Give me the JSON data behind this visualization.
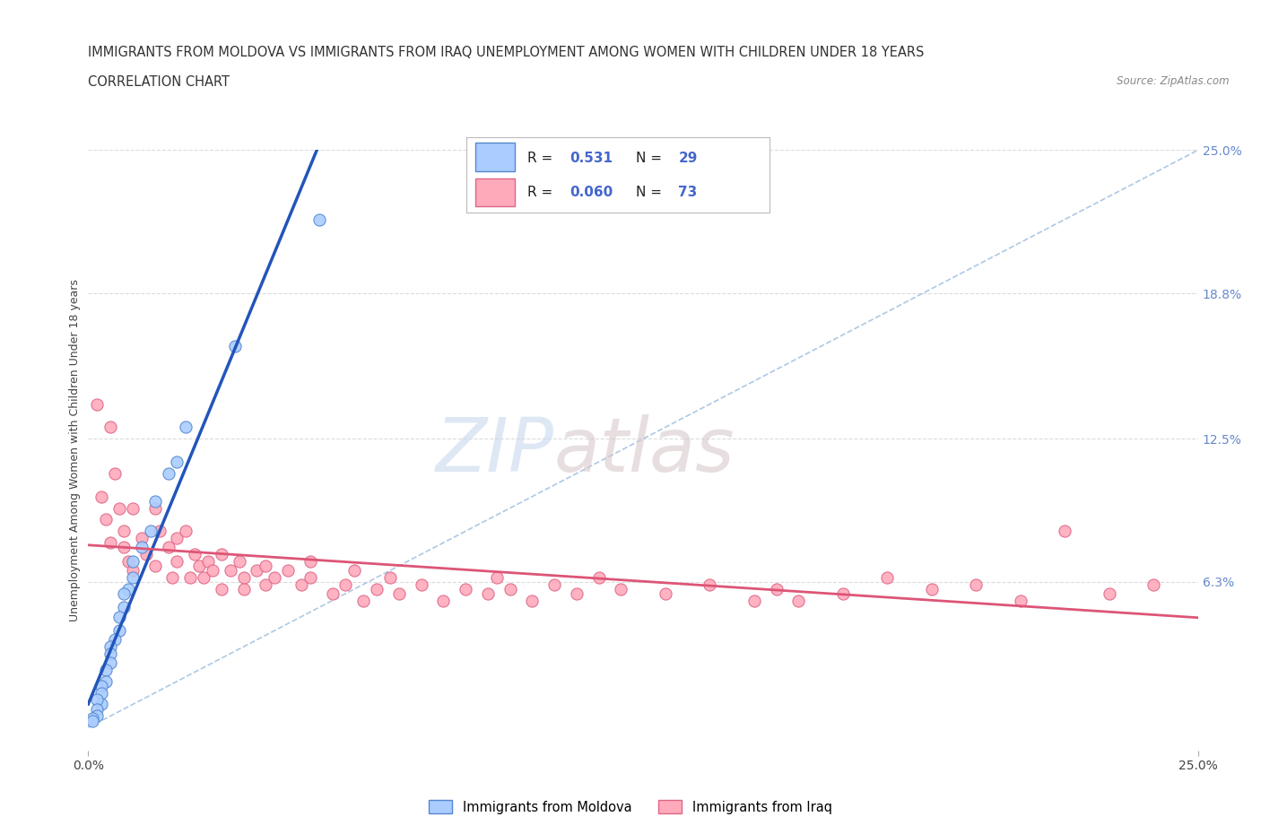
{
  "title_line1": "IMMIGRANTS FROM MOLDOVA VS IMMIGRANTS FROM IRAQ UNEMPLOYMENT AMONG WOMEN WITH CHILDREN UNDER 18 YEARS",
  "title_line2": "CORRELATION CHART",
  "source": "Source: ZipAtlas.com",
  "ylabel": "Unemployment Among Women with Children Under 18 years",
  "xlim": [
    0,
    0.25
  ],
  "ylim": [
    -0.01,
    0.25
  ],
  "ytick_right_labels": [
    "25.0%",
    "18.8%",
    "12.5%",
    "6.3%"
  ],
  "ytick_right_values": [
    0.25,
    0.188,
    0.125,
    0.063
  ],
  "grid_color": "#cccccc",
  "background_color": "#ffffff",
  "moldova_color": "#aaccff",
  "moldova_border": "#5588cc",
  "iraq_color": "#ffaabb",
  "iraq_border": "#dd6688",
  "moldova_trend_color": "#2255bb",
  "iraq_trend_color": "#dd5577",
  "dash_color": "#99bbdd",
  "R_moldova": "0.531",
  "N_moldova": "29",
  "R_iraq": "0.060",
  "N_iraq": "73",
  "title_fontsize": 11,
  "label_fontsize": 9,
  "tick_fontsize": 10,
  "watermark_zip": "ZIP",
  "watermark_atlas": "atlas"
}
